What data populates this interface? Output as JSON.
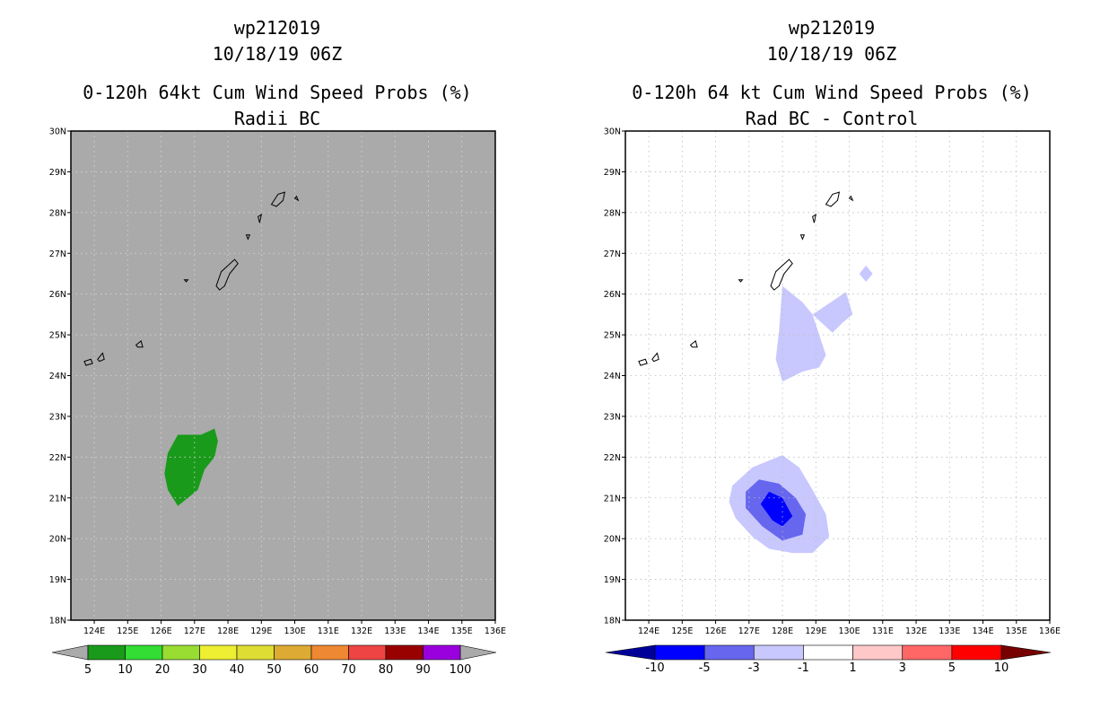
{
  "chart_data": [
    {
      "type": "heatmap",
      "title_lines": [
        "wp212019",
        "10/18/19 06Z",
        "0-120h 64kt Cum Wind Speed Probs (%)",
        "Radii BC"
      ],
      "xticks": [
        "124E",
        "125E",
        "126E",
        "127E",
        "128E",
        "129E",
        "130E",
        "131E",
        "132E",
        "133E",
        "134E",
        "135E",
        "136E"
      ],
      "yticks": [
        "18N",
        "19N",
        "20N",
        "21N",
        "22N",
        "23N",
        "24N",
        "25N",
        "26N",
        "27N",
        "28N",
        "29N",
        "30N"
      ],
      "xlim": [
        123.3,
        136
      ],
      "ylim": [
        18,
        30
      ],
      "background": "#aaaaaa",
      "grid": true,
      "colorbar": {
        "labels": [
          "5",
          "10",
          "20",
          "30",
          "40",
          "50",
          "60",
          "70",
          "80",
          "90",
          "100"
        ],
        "colors": [
          "#1a9a1a",
          "#33dd33",
          "#99dd33",
          "#eeee33",
          "#dddd33",
          "#ddaa33",
          "#ee8833",
          "#ee4444",
          "#990000",
          "#9900dd"
        ],
        "end_color_left": "#aaaaaa",
        "end_color_right": "#aaaaaa"
      },
      "contours": [
        {
          "level": "5-10",
          "color": "#1a9a1a",
          "lon": [
            126.5,
            127.2,
            127.6,
            127.7,
            127.6,
            127.3,
            127.1,
            126.8,
            126.5,
            126.2,
            126.1,
            126.2,
            126.5
          ],
          "lat": [
            22.55,
            22.55,
            22.7,
            22.4,
            22.0,
            21.7,
            21.2,
            21.0,
            20.8,
            21.2,
            21.6,
            22.1,
            22.55
          ]
        }
      ]
    },
    {
      "type": "heatmap",
      "title_lines": [
        "wp212019",
        "10/18/19 06Z",
        "0-120h 64 kt Cum Wind Speed Probs (%)",
        "Rad BC - Control"
      ],
      "xticks": [
        "124E",
        "125E",
        "126E",
        "127E",
        "128E",
        "129E",
        "130E",
        "131E",
        "132E",
        "133E",
        "134E",
        "135E",
        "136E"
      ],
      "yticks": [
        "18N",
        "19N",
        "20N",
        "21N",
        "22N",
        "23N",
        "24N",
        "25N",
        "26N",
        "27N",
        "28N",
        "29N",
        "30N"
      ],
      "xlim": [
        123.3,
        136
      ],
      "ylim": [
        18,
        30
      ],
      "background": "#ffffff",
      "grid": true,
      "colorbar": {
        "labels": [
          "-10",
          "-5",
          "-3",
          "-1",
          "1",
          "3",
          "5",
          "10"
        ],
        "colors": [
          "#0000ff",
          "#6666ee",
          "#c8c8ff",
          "#ffffff",
          "#ffc8c8",
          "#ff6666",
          "#ff0000"
        ],
        "end_color_left": "#000099",
        "end_color_right": "#770000"
      },
      "contours": [
        {
          "level": "-3 to -1",
          "color": "#c8c8ff",
          "lon": [
            128.0,
            127.1,
            126.5,
            126.4,
            126.6,
            127.1,
            127.6,
            128.3,
            128.9,
            129.4,
            129.3,
            128.9,
            128.5,
            128.0
          ],
          "lat": [
            22.05,
            21.75,
            21.3,
            20.9,
            20.5,
            20.05,
            19.75,
            19.65,
            19.65,
            20.05,
            20.6,
            21.2,
            21.75,
            22.05
          ]
        },
        {
          "level": "-5 to -3",
          "color": "#6666ee",
          "lon": [
            127.3,
            127.9,
            128.4,
            128.7,
            128.6,
            128.0,
            127.4,
            126.9,
            126.9,
            127.3
          ],
          "lat": [
            21.45,
            21.35,
            21.0,
            20.6,
            20.1,
            19.95,
            20.3,
            20.75,
            21.15,
            21.45
          ]
        },
        {
          "level": "-10 to -5",
          "color": "#0000ff",
          "lon": [
            127.6,
            128.0,
            128.3,
            128.0,
            127.7,
            127.35,
            127.6
          ],
          "lat": [
            21.15,
            21.0,
            20.55,
            20.3,
            20.45,
            20.85,
            21.15
          ]
        },
        {
          "level": "-3 to -1",
          "color": "#c8c8ff",
          "lon": [
            128.0,
            128.6,
            128.9,
            129.3,
            129.1,
            128.6,
            128.0,
            127.8,
            127.9,
            128.0
          ],
          "lat": [
            26.2,
            25.8,
            25.5,
            24.5,
            24.2,
            24.1,
            23.85,
            24.4,
            25.1,
            26.2
          ]
        },
        {
          "level": "-3 to -1",
          "color": "#c8c8ff",
          "lon": [
            128.9,
            129.9,
            130.1,
            129.8,
            129.5,
            128.9
          ],
          "lat": [
            25.5,
            26.05,
            25.5,
            25.3,
            25.05,
            25.5
          ]
        },
        {
          "level": "-3 to -1",
          "color": "#c8c8ff",
          "lon": [
            130.5,
            130.7,
            130.5,
            130.3,
            130.5
          ],
          "lat": [
            26.7,
            26.5,
            26.3,
            26.5,
            26.7
          ]
        }
      ]
    }
  ]
}
